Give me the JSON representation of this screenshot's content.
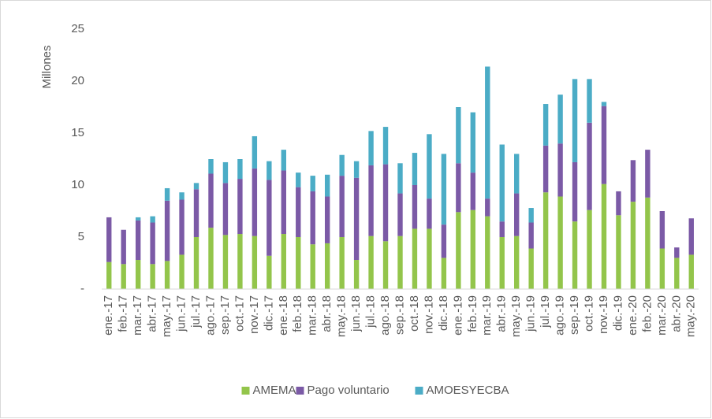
{
  "chart_data": {
    "type": "stacked_bar",
    "y_label": "Millones",
    "categories": [
      "ene.-17",
      "feb.-17",
      "mar.-17",
      "abr.-17",
      "may.-17",
      "jun.-17",
      "jul.-17",
      "ago.-17",
      "sep.-17",
      "oct.-17",
      "nov.-17",
      "dic.-17",
      "ene.-18",
      "feb.-18",
      "mar.-18",
      "abr.-18",
      "may.-18",
      "jun.-18",
      "jul.-18",
      "ago.-18",
      "sep.-18",
      "oct.-18",
      "nov.-18",
      "dic.-18",
      "ene.-19",
      "feb.-19",
      "mar.-19",
      "abr.-19",
      "may.-19",
      "jun.-19",
      "jul.-19",
      "ago.-19",
      "sep.-19",
      "oct.-19",
      "nov.-19",
      "dic.-19",
      "ene.-20",
      "feb.-20",
      "mar.-20",
      "abr.-20",
      "may.-20"
    ],
    "series": [
      {
        "name": "AMEMA",
        "color": "#93c54b",
        "values": [
          2.6,
          2.4,
          2.8,
          2.4,
          2.7,
          3.3,
          5.0,
          5.9,
          5.2,
          5.3,
          5.1,
          3.2,
          5.3,
          5.0,
          4.3,
          4.4,
          5.0,
          2.8,
          5.1,
          4.6,
          5.1,
          5.8,
          5.8,
          3.0,
          7.4,
          7.6,
          7.0,
          5.0,
          5.1,
          3.9,
          9.3,
          8.9,
          6.5,
          7.6,
          10.1,
          7.1,
          8.4,
          8.8,
          3.9,
          3.0,
          3.3
        ]
      },
      {
        "name": "Pago voluntario",
        "color": "#7b5aa6",
        "values": [
          4.3,
          3.3,
          3.8,
          4.0,
          5.8,
          5.3,
          4.6,
          5.2,
          5.0,
          5.3,
          6.5,
          7.3,
          6.1,
          4.8,
          5.1,
          4.5,
          5.9,
          7.9,
          6.8,
          7.4,
          4.1,
          4.2,
          2.9,
          3.2,
          4.7,
          3.6,
          1.7,
          1.5,
          4.1,
          2.5,
          4.5,
          5.1,
          5.7,
          8.4,
          7.5,
          2.3,
          4.0,
          4.6,
          3.6,
          1.0,
          3.5
        ]
      },
      {
        "name": "AMOESYECBA",
        "color": "#4bacc6",
        "values": [
          0,
          0,
          0.3,
          0.6,
          1.2,
          0.7,
          0.6,
          1.4,
          2.0,
          1.9,
          3.1,
          1.8,
          2.0,
          1.4,
          1.5,
          2.1,
          2.0,
          1.6,
          3.3,
          3.6,
          2.9,
          3.1,
          6.2,
          6.8,
          5.4,
          5.8,
          12.7,
          7.4,
          3.8,
          1.4,
          4.0,
          4.7,
          8.0,
          4.2,
          0.4,
          0,
          0,
          0,
          0,
          0,
          0
        ]
      }
    ],
    "ylim": [
      0,
      25
    ],
    "yticks": [
      {
        "value": 0,
        "label": "-"
      },
      5,
      10,
      15,
      20,
      25
    ],
    "grid": false,
    "legend": "bottom"
  }
}
